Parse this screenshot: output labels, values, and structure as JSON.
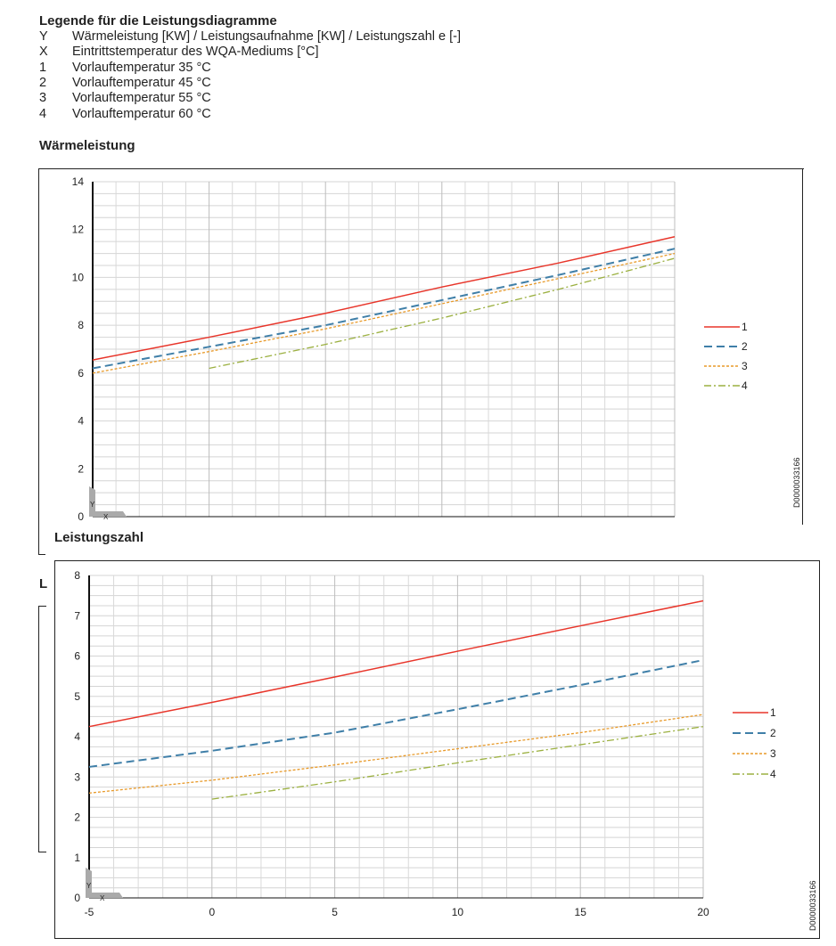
{
  "legend": {
    "title": "Legende für die Leistungsdiagramme",
    "items": [
      {
        "key": "Y",
        "text": "Wärmeleistung [KW] / Leistungsaufnahme [KW] / Leistungszahl e [-]"
      },
      {
        "key": "X",
        "text": "Eintrittstemperatur des WQA-Mediums [°C]"
      },
      {
        "key": "1",
        "text": "Vorlauftemperatur 35 °C"
      },
      {
        "key": "2",
        "text": "Vorlauftemperatur 45 °C"
      },
      {
        "key": "3",
        "text": "Vorlauftemperatur 55 °C"
      },
      {
        "key": "4",
        "text": "Vorlauftemperatur 60 °C"
      }
    ]
  },
  "fragment_letter": "L",
  "chart_data": [
    {
      "type": "line",
      "title": "Wärmeleistung",
      "id_code": "D0000033166",
      "axis_marker_y": "Y",
      "axis_marker_x": "X",
      "xlim": [
        -5,
        20
      ],
      "ylim": [
        0,
        14
      ],
      "yticks": [
        0,
        2,
        4,
        6,
        8,
        10,
        12,
        14
      ],
      "xticks": [],
      "grid": true,
      "legend_position": "right",
      "series": [
        {
          "name": "1",
          "color": "#e8352a",
          "dash": "",
          "x": [
            -5,
            0,
            5,
            10,
            15,
            20
          ],
          "y": [
            6.55,
            7.5,
            8.5,
            9.6,
            10.6,
            11.7
          ]
        },
        {
          "name": "2",
          "color": "#3f7fa8",
          "dash": "9 5",
          "x": [
            -5,
            0,
            5,
            10,
            15,
            20
          ],
          "y": [
            6.2,
            7.1,
            8.0,
            9.05,
            10.1,
            11.2
          ]
        },
        {
          "name": "3",
          "color": "#e89a2a",
          "dash": "3 2",
          "x": [
            -5,
            0,
            5,
            10,
            15,
            20
          ],
          "y": [
            6.0,
            6.9,
            7.85,
            8.9,
            9.95,
            11.0
          ]
        },
        {
          "name": "4",
          "color": "#9bb040",
          "dash": "8 3 2 3",
          "x": [
            0,
            5,
            10,
            15,
            20
          ],
          "y": [
            6.2,
            7.2,
            8.3,
            9.5,
            10.8
          ]
        }
      ]
    },
    {
      "type": "line",
      "title": "Leistungszahl",
      "id_code": "D0000033166",
      "axis_marker_y": "Y",
      "axis_marker_x": "X",
      "xlim": [
        -5,
        20
      ],
      "ylim": [
        0,
        8
      ],
      "yticks": [
        0,
        1,
        2,
        3,
        4,
        5,
        6,
        7,
        8
      ],
      "xticks": [
        -5,
        0,
        5,
        10,
        15,
        20
      ],
      "grid": true,
      "legend_position": "right",
      "series": [
        {
          "name": "1",
          "color": "#e8352a",
          "dash": "",
          "x": [
            -5,
            0,
            5,
            10,
            15,
            20
          ],
          "y": [
            4.25,
            4.85,
            5.48,
            6.12,
            6.75,
            7.37
          ]
        },
        {
          "name": "2",
          "color": "#3f7fa8",
          "dash": "9 5",
          "x": [
            -5,
            0,
            5,
            10,
            15,
            20
          ],
          "y": [
            3.25,
            3.65,
            4.1,
            4.68,
            5.28,
            5.9
          ]
        },
        {
          "name": "3",
          "color": "#e89a2a",
          "dash": "3 2",
          "x": [
            -5,
            0,
            5,
            10,
            15,
            20
          ],
          "y": [
            2.6,
            2.92,
            3.3,
            3.7,
            4.1,
            4.55
          ]
        },
        {
          "name": "4",
          "color": "#9bb040",
          "dash": "8 3 2 3",
          "x": [
            0,
            5,
            10,
            15,
            20
          ],
          "y": [
            2.45,
            2.88,
            3.35,
            3.8,
            4.25
          ]
        }
      ]
    }
  ]
}
